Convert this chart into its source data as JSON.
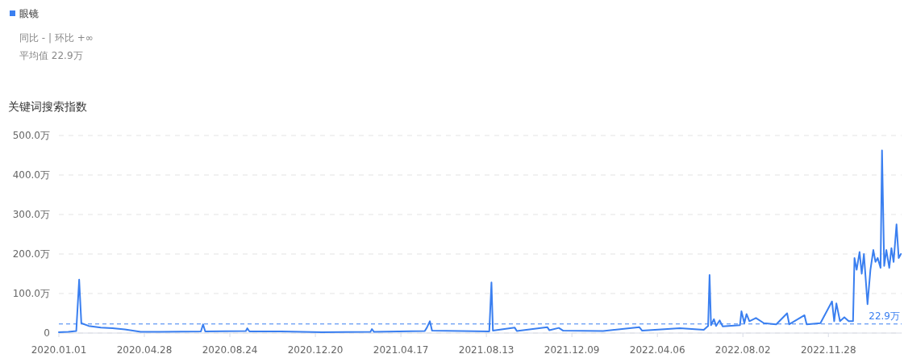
{
  "chart_data": {
    "type": "line",
    "title": "关键词搜索指数",
    "legend": "top left",
    "grid": "y",
    "marker": "none",
    "line_style": "solid",
    "annotations": [
      "同比 - | 环比 +∞",
      "平均值 22.9万"
    ],
    "xlim": [
      "2020-01-01",
      "2023-03-09"
    ],
    "xticks": [
      {
        "value": "2020-01-01",
        "label": "2020.01.01"
      },
      {
        "value": "2020-04-28",
        "label": "2020.04.28"
      },
      {
        "value": "2020-08-24",
        "label": "2020.08.24"
      },
      {
        "value": "2020-12-20",
        "label": "2020.12.20"
      },
      {
        "value": "2021-04-17",
        "label": "2021.04.17"
      },
      {
        "value": "2021-08-13",
        "label": "2021.08.13"
      },
      {
        "value": "2021-12-09",
        "label": "2021.12.09"
      },
      {
        "value": "2022-04-06",
        "label": "2022.04.06"
      },
      {
        "value": "2022-08-02",
        "label": "2022.08.02"
      },
      {
        "value": "2022-11-28",
        "label": "2022.11.28"
      }
    ],
    "ylim": [
      0,
      500
    ],
    "yticks": [
      0,
      {
        "value": 100,
        "label": "100.0万"
      },
      {
        "value": 200,
        "label": "200.0万"
      },
      {
        "value": 300,
        "label": "300.0万"
      },
      {
        "value": 400,
        "label": "400.0万"
      },
      {
        "value": 500,
        "label": "500.0万"
      }
    ],
    "ref_lines": [
      {
        "axis": "y",
        "value": 22.9,
        "label": "22.9万",
        "color": "#3a7ff0",
        "line_style": "dashed"
      }
    ],
    "x": [
      "2020-01-01",
      "2020-01-14",
      "2020-01-25",
      "2020-01-29",
      "2020-02-01",
      "2020-02-11",
      "2020-02-28",
      "2020-03-15",
      "2020-04-01",
      "2020-04-12",
      "2020-04-23",
      "2020-05-21",
      "2020-07-15",
      "2020-07-18",
      "2020-07-21",
      "2020-09-15",
      "2020-09-17",
      "2020-09-20",
      "2020-11-03",
      "2020-12-29",
      "2021-03-06",
      "2021-03-08",
      "2021-03-11",
      "2021-05-20",
      "2021-05-23",
      "2021-05-27",
      "2021-05-30",
      "2021-08-17",
      "2021-08-20",
      "2021-08-22",
      "2021-09-21",
      "2021-09-24",
      "2021-11-05",
      "2021-11-08",
      "2021-11-21",
      "2021-11-27",
      "2022-01-21",
      "2022-03-12",
      "2022-03-16",
      "2022-04-20",
      "2022-05-07",
      "2022-06-09",
      "2022-06-15",
      "2022-06-17",
      "2022-06-19",
      "2022-06-23",
      "2022-06-26",
      "2022-07-01",
      "2022-07-05",
      "2022-07-29",
      "2022-07-31",
      "2022-08-04",
      "2022-08-07",
      "2022-08-11",
      "2022-08-20",
      "2022-08-31",
      "2022-09-17",
      "2022-10-02",
      "2022-10-05",
      "2022-10-26",
      "2022-10-29",
      "2022-11-17",
      "2022-12-03",
      "2022-12-06",
      "2022-12-09",
      "2022-12-14",
      "2022-12-20",
      "2022-12-26",
      "2023-01-01",
      "2023-01-03",
      "2023-01-06",
      "2023-01-10",
      "2023-01-13",
      "2023-01-16",
      "2023-01-21",
      "2023-01-25",
      "2023-01-29",
      "2023-02-01",
      "2023-02-04",
      "2023-02-08",
      "2023-02-10",
      "2023-02-13",
      "2023-02-16",
      "2023-02-20",
      "2023-02-23",
      "2023-02-26",
      "2023-03-02",
      "2023-03-05",
      "2023-03-08"
    ],
    "series": [
      {
        "name": "眼镜",
        "color": "#3a7ff0",
        "values": [
          2,
          3,
          5,
          135,
          25,
          18,
          14,
          12,
          9,
          6,
          3,
          3,
          4,
          22,
          4,
          5,
          12,
          4,
          4,
          2,
          3,
          10,
          3,
          5,
          14,
          30,
          6,
          4,
          128,
          6,
          14,
          5,
          15,
          7,
          13,
          6,
          5,
          15,
          6,
          10,
          12,
          8,
          18,
          147,
          20,
          35,
          18,
          32,
          17,
          20,
          55,
          25,
          48,
          30,
          38,
          25,
          22,
          50,
          22,
          45,
          22,
          25,
          80,
          30,
          75,
          30,
          40,
          30,
          30,
          190,
          160,
          205,
          150,
          200,
          73,
          160,
          210,
          180,
          190,
          165,
          462,
          170,
          210,
          165,
          215,
          180,
          275,
          190,
          200
        ]
      }
    ]
  }
}
